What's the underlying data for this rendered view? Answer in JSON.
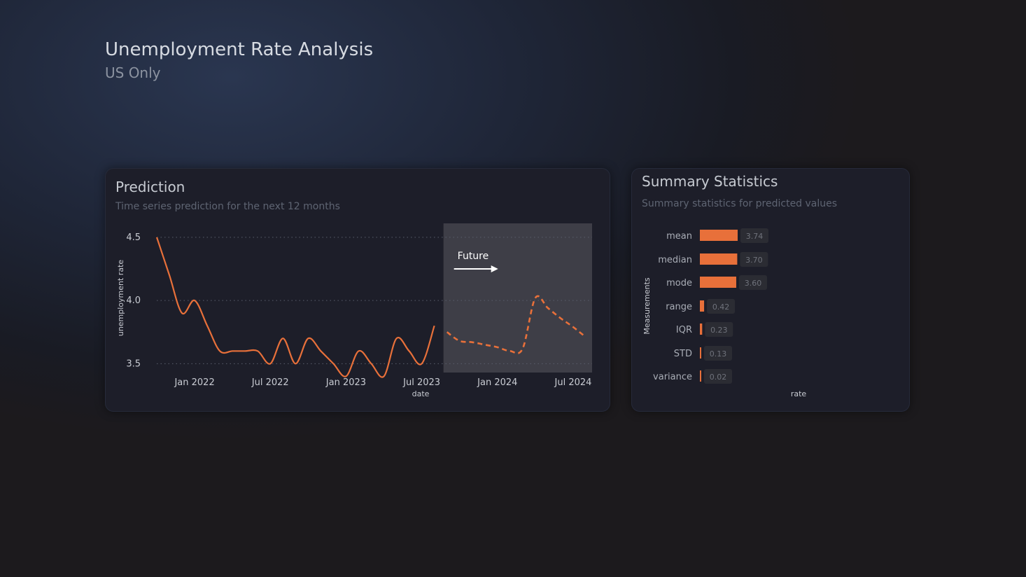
{
  "header": {
    "title": "Unemployment Rate Analysis",
    "subtitle": "US Only"
  },
  "prediction_card": {
    "title": "Prediction",
    "subtitle": "Time series prediction for the next 12 months",
    "future_label": "Future"
  },
  "stats_card": {
    "title": "Summary Statistics",
    "subtitle": "Summary statistics for predicted values"
  },
  "colors": {
    "accent": "#e8703a",
    "future_region": "#3e3e47",
    "background": "#1c1f2c"
  },
  "chart_data": [
    {
      "type": "line",
      "title": "Prediction",
      "xlabel": "date",
      "ylabel": "unemployment rate",
      "x_ticks": [
        "Jan 2022",
        "Jul 2022",
        "Jan 2023",
        "Jul 2023",
        "Jan 2024",
        "Jul 2024"
      ],
      "y_ticks": [
        "3.5",
        "4.0",
        "4.5"
      ],
      "ylim": [
        3.43,
        4.61
      ],
      "grid": "horizontal dotted",
      "future_start": "2023-09",
      "series": [
        {
          "style": "solid",
          "x": [
            "2021-10",
            "2021-11",
            "2021-12",
            "2022-01",
            "2022-02",
            "2022-03",
            "2022-04",
            "2022-05",
            "2022-06",
            "2022-07",
            "2022-08",
            "2022-09",
            "2022-10",
            "2022-11",
            "2022-12",
            "2023-01",
            "2023-02",
            "2023-03",
            "2023-04",
            "2023-05",
            "2023-06",
            "2023-07",
            "2023-08"
          ],
          "values": [
            4.5,
            4.2,
            3.9,
            4.0,
            3.8,
            3.6,
            3.6,
            3.6,
            3.6,
            3.5,
            3.7,
            3.5,
            3.7,
            3.6,
            3.5,
            3.4,
            3.6,
            3.5,
            3.4,
            3.7,
            3.6,
            3.5,
            3.8
          ]
        },
        {
          "style": "dashed",
          "x": [
            "2023-09",
            "2023-10",
            "2023-11",
            "2023-12",
            "2024-01",
            "2024-02",
            "2024-03",
            "2024-04",
            "2024-05",
            "2024-06",
            "2024-07",
            "2024-08"
          ],
          "values": [
            3.75,
            3.68,
            3.67,
            3.65,
            3.63,
            3.6,
            3.62,
            4.02,
            3.94,
            3.86,
            3.79,
            3.71
          ]
        }
      ]
    },
    {
      "type": "bar",
      "orientation": "horizontal",
      "title": "Summary Statistics",
      "xlabel": "rate",
      "ylabel": "Measurements",
      "categories": [
        "mean",
        "median",
        "mode",
        "range",
        "IQR",
        "STD",
        "variance"
      ],
      "values": [
        3.74,
        3.7,
        3.6,
        0.42,
        0.23,
        0.13,
        0.02
      ],
      "labels": [
        "3.74",
        "3.70",
        "3.60",
        "0.42",
        "0.23",
        "0.13",
        "0.02"
      ]
    }
  ]
}
